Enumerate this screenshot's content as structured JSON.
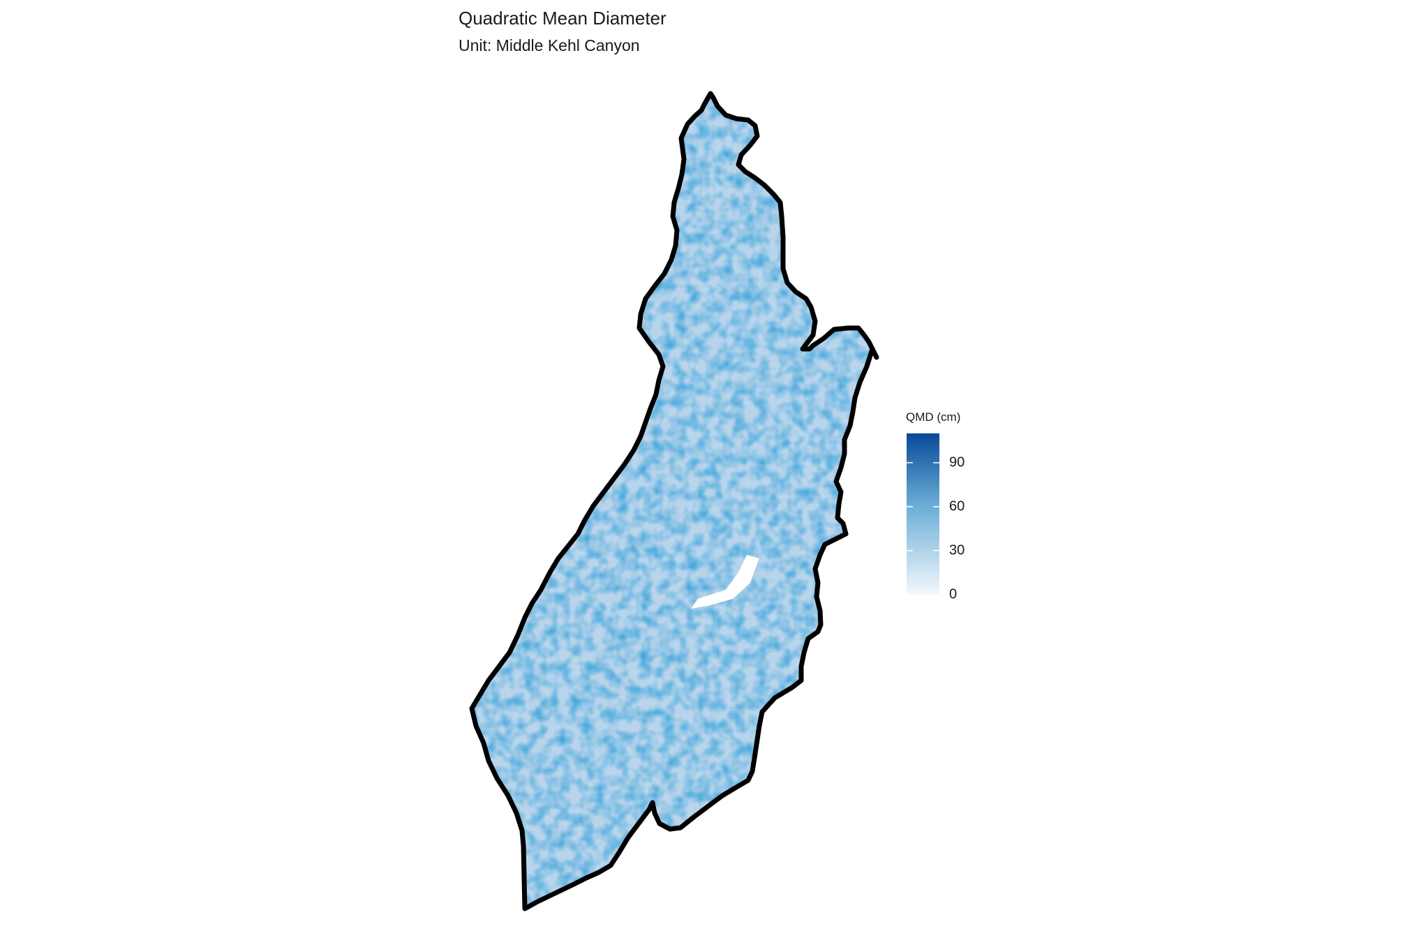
{
  "map": {
    "title": "Quadratic Mean Diameter",
    "subtitle": "Unit: Middle Kehl Canyon"
  },
  "legend": {
    "title": "QMD (cm)",
    "min": 0,
    "max": 110,
    "ticks": [
      {
        "value": 0,
        "label": "0"
      },
      {
        "value": 30,
        "label": "30"
      },
      {
        "value": 60,
        "label": "60"
      },
      {
        "value": 90,
        "label": "90"
      }
    ],
    "color_low": "#f4f8fd",
    "color_mid": "#6baed6",
    "color_high": "#084a97"
  },
  "colors": {
    "boundary": "#000000",
    "background": "#ffffff",
    "text": "#1a1a1a"
  }
}
